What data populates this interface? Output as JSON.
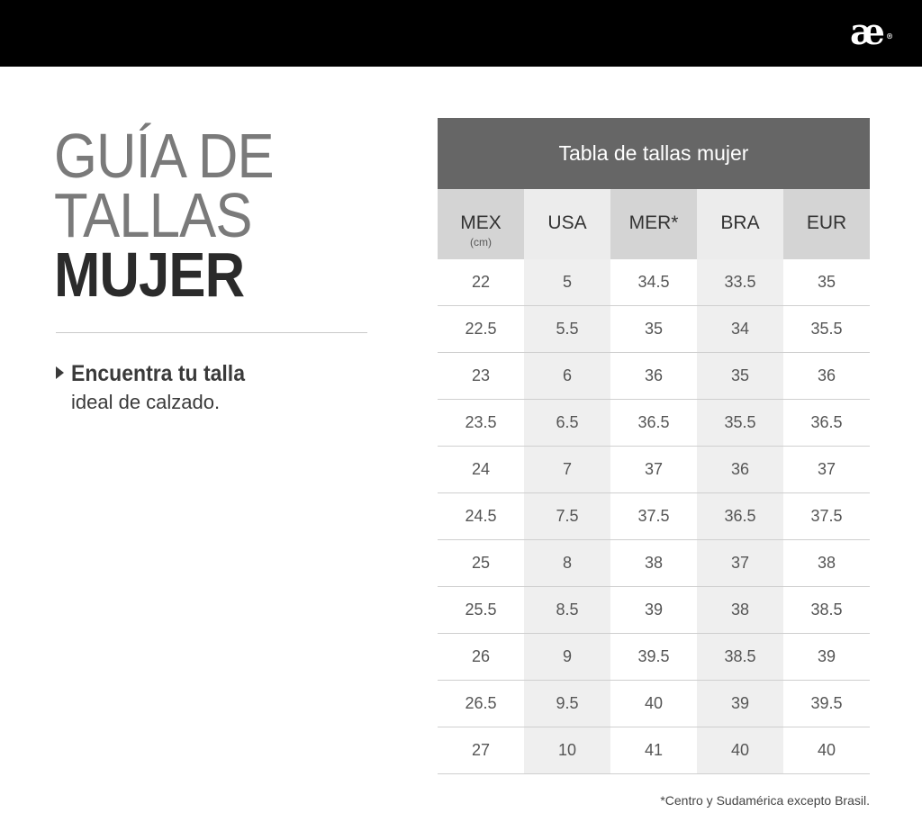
{
  "brand": {
    "logo_text": "æ",
    "logo_mark": "®"
  },
  "title": {
    "line1": "GUÍA DE",
    "line2": "TALLAS",
    "line3": "MUJER"
  },
  "tagline": {
    "strong": "Encuentra tu talla",
    "light": "ideal de calzado."
  },
  "table": {
    "title": "Tabla de tallas mujer",
    "columns": [
      {
        "label": "MEX",
        "sub": "(cm)"
      },
      {
        "label": "USA",
        "sub": ""
      },
      {
        "label": "MER*",
        "sub": ""
      },
      {
        "label": "BRA",
        "sub": ""
      },
      {
        "label": "EUR",
        "sub": ""
      }
    ],
    "rows": [
      [
        "22",
        "5",
        "34.5",
        "33.5",
        "35"
      ],
      [
        "22.5",
        "5.5",
        "35",
        "34",
        "35.5"
      ],
      [
        "23",
        "6",
        "36",
        "35",
        "36"
      ],
      [
        "23.5",
        "6.5",
        "36.5",
        "35.5",
        "36.5"
      ],
      [
        "24",
        "7",
        "37",
        "36",
        "37"
      ],
      [
        "24.5",
        "7.5",
        "37.5",
        "36.5",
        "37.5"
      ],
      [
        "25",
        "8",
        "38",
        "37",
        "38"
      ],
      [
        "25.5",
        "8.5",
        "39",
        "38",
        "38.5"
      ],
      [
        "26",
        "9",
        "39.5",
        "38.5",
        "39"
      ],
      [
        "26.5",
        "9.5",
        "40",
        "39",
        "39.5"
      ],
      [
        "27",
        "10",
        "41",
        "40",
        "40"
      ]
    ]
  },
  "footnote": "*Centro y Sudamérica excepto Brasil."
}
